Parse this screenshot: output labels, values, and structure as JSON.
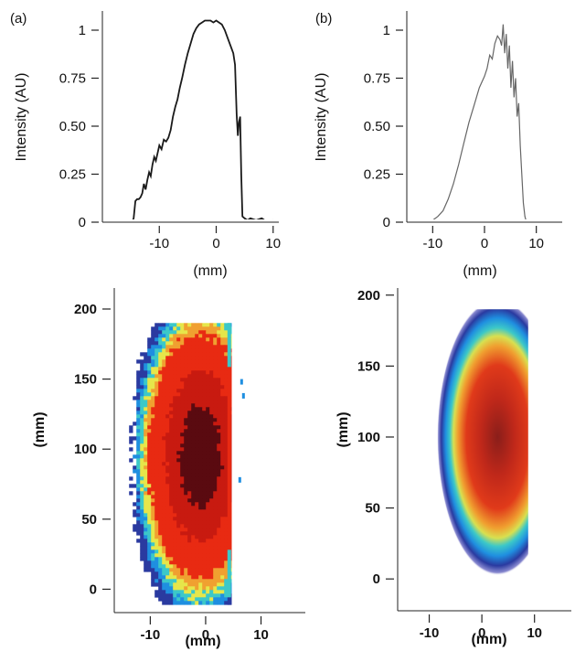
{
  "chart_data": [
    {
      "panel": "(a)",
      "type": "line",
      "xlabel": "(mm)",
      "ylabel": "Intensity (AU)",
      "xticks": [
        "-10",
        "0",
        "10"
      ],
      "yticks": [
        "0",
        "0.25",
        "0.50",
        "0.75",
        "1"
      ],
      "xlim": [
        -20,
        11
      ],
      "ylim": [
        0,
        1.1
      ],
      "series": [
        {
          "color": "#1a1a1a",
          "x": [
            -20,
            -14.8,
            -14.5,
            -14.2,
            -13.9,
            -13.6,
            -13.3,
            -13.0,
            -12.7,
            -12.4,
            -12.1,
            -11.8,
            -11.5,
            -11.2,
            -10.9,
            -10.6,
            -10.3,
            -10.0,
            -9.6,
            -9.2,
            -8.8,
            -8.4,
            -8.0,
            -7.6,
            -7.2,
            -6.8,
            -6.4,
            -6.0,
            -5.5,
            -5.0,
            -4.5,
            -4.0,
            -3.5,
            -3.0,
            -2.5,
            -2.0,
            -1.5,
            -1.0,
            -0.5,
            0,
            0.5,
            1.0,
            1.5,
            2.0,
            2.5,
            3.0,
            3.3,
            3.6,
            3.8,
            4.0,
            4.2,
            4.4,
            4.6,
            5.0,
            5.5,
            6,
            7,
            8,
            9,
            10,
            10.5
          ],
          "y": [
            0,
            0,
            0.02,
            0.11,
            0.12,
            0.12,
            0.13,
            0.15,
            0.2,
            0.17,
            0.22,
            0.26,
            0.24,
            0.3,
            0.34,
            0.32,
            0.36,
            0.4,
            0.38,
            0.43,
            0.42,
            0.44,
            0.48,
            0.55,
            0.6,
            0.64,
            0.7,
            0.75,
            0.82,
            0.88,
            0.93,
            0.98,
            1.01,
            1.03,
            1.04,
            1.05,
            1.05,
            1.05,
            1.04,
            1.05,
            1.04,
            1.03,
            1.0,
            0.96,
            0.92,
            0.88,
            0.82,
            0.56,
            0.45,
            0.52,
            0.55,
            0.25,
            0.03,
            0.02,
            0.01,
            0.02,
            0.01,
            0.02,
            0.0,
            0.01,
            0.0
          ]
        }
      ]
    },
    {
      "panel": "(b)",
      "type": "line",
      "xlabel": "(mm)",
      "ylabel": "Intensity (AU)",
      "xticks": [
        "-10",
        "0",
        "10"
      ],
      "yticks": [
        "0",
        "0.25",
        "0.50",
        "0.75",
        "1"
      ],
      "xlim": [
        -15,
        15
      ],
      "ylim": [
        0,
        1.1
      ],
      "series": [
        {
          "color": "#666666",
          "x": [
            -12.5,
            -10,
            -9,
            -8,
            -7,
            -6,
            -5,
            -4,
            -3,
            -2,
            -1,
            0,
            0.5,
            1.0,
            1.5,
            2.0,
            2.5,
            3.0,
            3.3,
            3.6,
            3.9,
            4.2,
            4.5,
            4.8,
            5.1,
            5.4,
            5.7,
            6.0,
            6.3,
            6.6,
            6.9,
            7.2,
            7.5,
            7.8,
            8.1,
            8.5
          ],
          "y": [
            0,
            0.01,
            0.03,
            0.06,
            0.12,
            0.2,
            0.3,
            0.41,
            0.52,
            0.61,
            0.7,
            0.76,
            0.8,
            0.87,
            0.85,
            0.93,
            0.97,
            0.95,
            0.92,
            1.03,
            0.88,
            0.98,
            0.8,
            0.92,
            0.7,
            0.84,
            0.65,
            0.75,
            0.55,
            0.62,
            0.4,
            0.25,
            0.1,
            0.03,
            0.0,
            0.0
          ]
        }
      ]
    },
    {
      "type": "heatmap",
      "xlabel": "(mm)",
      "ylabel": "(mm)",
      "xticks": [
        "-10",
        "0",
        "10"
      ],
      "yticks": [
        "0",
        "50",
        "100",
        "150",
        "200"
      ],
      "xlim": [
        -16.5,
        18
      ],
      "ylim": [
        -18,
        215
      ],
      "extent": {
        "x": [
          -12.5,
          4.6
        ],
        "y": [
          -10,
          190
        ]
      },
      "peak": {
        "x": -1,
        "y": 95
      },
      "colormap": [
        "#ffffff",
        "#2a3aa0",
        "#1f8fe0",
        "#3cc8c8",
        "#e6e64a",
        "#f0a030",
        "#e82a12",
        "#c81a10",
        "#5a0a10"
      ],
      "pixelated": true
    },
    {
      "type": "heatmap",
      "xlabel": "(mm)",
      "ylabel": "(mm)",
      "xticks": [
        "-10",
        "0",
        "10"
      ],
      "yticks": [
        "0",
        "50",
        "100",
        "150",
        "200"
      ],
      "xlim": [
        -16,
        17
      ],
      "ylim": [
        -25,
        205
      ],
      "extent": {
        "x": [
          -8.5,
          8.8
        ],
        "y": [
          -5,
          190
        ]
      },
      "peak": {
        "x": 3,
        "y": 100
      },
      "colormap": [
        "#ffffff",
        "#8a8ad0",
        "#2a3aa0",
        "#1f8fe0",
        "#3cc8c8",
        "#d8e050",
        "#f0a030",
        "#e03a1a",
        "#c0281a",
        "#8a1e1a"
      ],
      "pixelated": false
    }
  ]
}
